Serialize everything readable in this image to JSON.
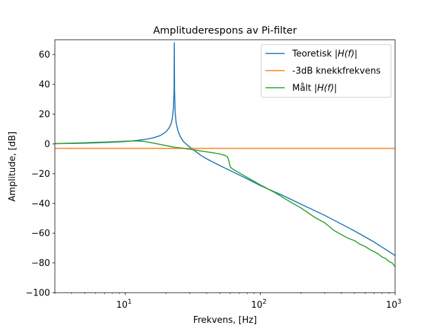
{
  "chart_data": {
    "type": "line",
    "title": "Amplituderespons av Pi-filter",
    "xlabel": "Frekvens, [Hz]",
    "ylabel": "Amplitude, [dB]",
    "xscale": "log",
    "xlim": [
      3,
      1000
    ],
    "ylim": [
      -100,
      70
    ],
    "grid": false,
    "legend_position": "top-right",
    "y_ticks": [
      60,
      40,
      20,
      0,
      -20,
      -40,
      -60,
      -80,
      -100
    ],
    "y_tick_labels": [
      "60",
      "40",
      "20",
      "0",
      "−20",
      "−40",
      "−60",
      "−80",
      "−100"
    ],
    "x_major_ticks": [
      10,
      100,
      1000
    ],
    "x_major_tick_labels": [
      {
        "base": "10",
        "exp": "1"
      },
      {
        "base": "10",
        "exp": "2"
      },
      {
        "base": "10",
        "exp": "3"
      }
    ],
    "series": [
      {
        "name": "Teoretisk |H(f)|",
        "color": "#1f77b4",
        "points": [
          [
            3,
            0.2
          ],
          [
            4,
            0.3
          ],
          [
            5,
            0.5
          ],
          [
            6,
            0.7
          ],
          [
            8,
            1.1
          ],
          [
            10,
            1.6
          ],
          [
            12,
            2.3
          ],
          [
            14,
            3.0
          ],
          [
            16,
            4.0
          ],
          [
            18,
            5.5
          ],
          [
            19,
            6.7
          ],
          [
            20,
            8.2
          ],
          [
            21,
            10.5
          ],
          [
            21.7,
            13
          ],
          [
            22.3,
            17
          ],
          [
            22.7,
            24
          ],
          [
            22.95,
            36
          ],
          [
            23.05,
            68
          ],
          [
            23.15,
            36
          ],
          [
            23.4,
            21
          ],
          [
            23.8,
            14
          ],
          [
            24.5,
            9
          ],
          [
            25.5,
            5
          ],
          [
            27,
            1.5
          ],
          [
            29,
            -1
          ],
          [
            32,
            -4
          ],
          [
            36,
            -7.5
          ],
          [
            40,
            -10
          ],
          [
            50,
            -14.5
          ],
          [
            60,
            -18
          ],
          [
            80,
            -23.5
          ],
          [
            100,
            -28
          ],
          [
            150,
            -35
          ],
          [
            200,
            -40.5
          ],
          [
            300,
            -48
          ],
          [
            500,
            -58.5
          ],
          [
            700,
            -66
          ],
          [
            1000,
            -75
          ]
        ]
      },
      {
        "name": "-3dB knekkfrekvens",
        "color": "#ff7f0e",
        "points": [
          [
            3,
            -3
          ],
          [
            1000,
            -3
          ]
        ]
      },
      {
        "name": "Målt |H(f)|",
        "color": "#2ca02c",
        "points": [
          [
            3,
            0.2
          ],
          [
            4,
            0.5
          ],
          [
            5,
            0.8
          ],
          [
            6,
            1.0
          ],
          [
            8,
            1.4
          ],
          [
            10,
            1.8
          ],
          [
            12,
            2.0
          ],
          [
            14,
            1.6
          ],
          [
            16,
            0.6
          ],
          [
            18,
            -0.3
          ],
          [
            20,
            -1.1
          ],
          [
            23,
            -2.2
          ],
          [
            26,
            -2.8
          ],
          [
            30,
            -3.6
          ],
          [
            35,
            -4.5
          ],
          [
            40,
            -5.3
          ],
          [
            45,
            -6.0
          ],
          [
            50,
            -6.8
          ],
          [
            55,
            -7.8
          ],
          [
            57,
            -8.6
          ],
          [
            58,
            -10
          ],
          [
            59,
            -13
          ],
          [
            60,
            -15.5
          ],
          [
            62,
            -16.8
          ],
          [
            65,
            -17.8
          ],
          [
            70,
            -19.5
          ],
          [
            80,
            -22.5
          ],
          [
            100,
            -27.5
          ],
          [
            130,
            -33
          ],
          [
            160,
            -38
          ],
          [
            200,
            -43
          ],
          [
            250,
            -49
          ],
          [
            300,
            -53
          ],
          [
            350,
            -58
          ],
          [
            400,
            -61
          ],
          [
            450,
            -63.5
          ],
          [
            500,
            -65
          ],
          [
            550,
            -67.5
          ],
          [
            600,
            -69
          ],
          [
            650,
            -71
          ],
          [
            700,
            -72.5
          ],
          [
            750,
            -74
          ],
          [
            800,
            -76
          ],
          [
            850,
            -77
          ],
          [
            900,
            -79
          ],
          [
            950,
            -80
          ],
          [
            1000,
            -82.5
          ]
        ]
      }
    ],
    "legend": [
      {
        "label": "Teoretisk |H(f)|",
        "prefix": "Teoretisk ",
        "math": "|H(f)|",
        "color": "#1f77b4"
      },
      {
        "label": "-3dB knekkfrekvens",
        "prefix": "-3dB knekkfrekvens",
        "math": "",
        "color": "#ff7f0e"
      },
      {
        "label": "Målt |H(f)|",
        "prefix": "Målt ",
        "math": "|H(f)|",
        "color": "#2ca02c"
      }
    ]
  }
}
